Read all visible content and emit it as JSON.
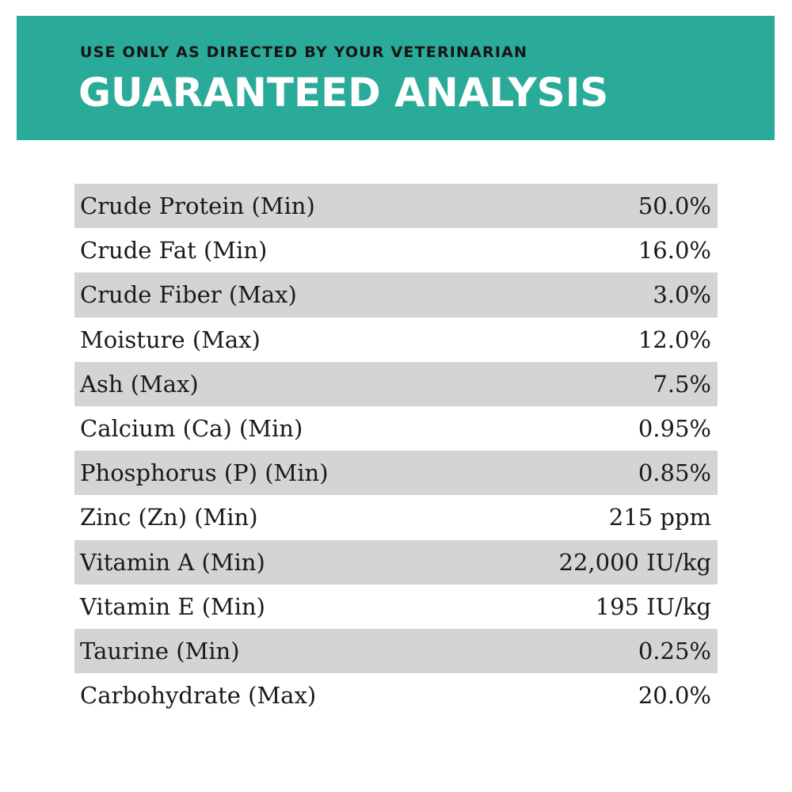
{
  "header": {
    "subtitle": "USE ONLY AS DIRECTED BY YOUR VETERINARIAN",
    "title": "GUARANTEED ANALYSIS",
    "background_color": "#2aaa98"
  },
  "rows": [
    {
      "label": "Crude Protein (Min)",
      "value": "50.0%"
    },
    {
      "label": "Crude Fat (Min)",
      "value": "16.0%"
    },
    {
      "label": "Crude Fiber (Max)",
      "value": "3.0%"
    },
    {
      "label": "Moisture (Max)",
      "value": "12.0%"
    },
    {
      "label": "Ash (Max)",
      "value": "7.5%"
    },
    {
      "label": "Calcium (Ca) (Min)",
      "value": "0.95%"
    },
    {
      "label": "Phosphorus (P) (Min)",
      "value": "0.85%"
    },
    {
      "label": "Zinc (Zn) (Min)",
      "value": "215 ppm"
    },
    {
      "label": "Vitamin A (Min)",
      "value": "22,000 IU/kg"
    },
    {
      "label": "Vitamin E (Min)",
      "value": "195 IU/kg"
    },
    {
      "label": "Taurine (Min)",
      "value": "0.25%"
    },
    {
      "label": "Carbohydrate (Max)",
      "value": "20.0%"
    }
  ]
}
